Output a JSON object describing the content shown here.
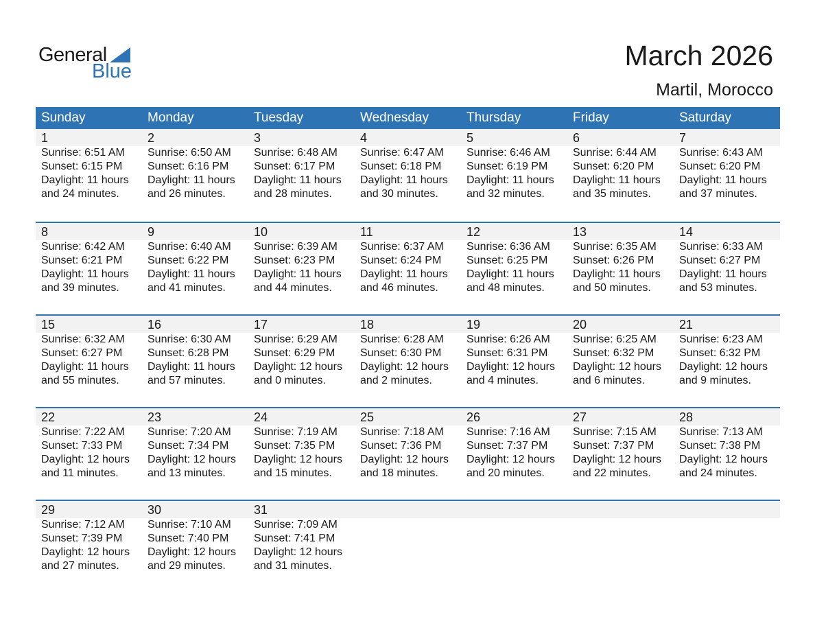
{
  "logo": {
    "text1": "General",
    "text2": "Blue"
  },
  "title": "March 2026",
  "location": "Martil, Morocco",
  "weekdays": [
    "Sunday",
    "Monday",
    "Tuesday",
    "Wednesday",
    "Thursday",
    "Friday",
    "Saturday"
  ],
  "weeks": [
    [
      {
        "d": "1",
        "sr": "Sunrise: 6:51 AM",
        "ss": "Sunset: 6:15 PM",
        "dl": "Daylight: 11 hours",
        "mn": "and 24 minutes."
      },
      {
        "d": "2",
        "sr": "Sunrise: 6:50 AM",
        "ss": "Sunset: 6:16 PM",
        "dl": "Daylight: 11 hours",
        "mn": "and 26 minutes."
      },
      {
        "d": "3",
        "sr": "Sunrise: 6:48 AM",
        "ss": "Sunset: 6:17 PM",
        "dl": "Daylight: 11 hours",
        "mn": "and 28 minutes."
      },
      {
        "d": "4",
        "sr": "Sunrise: 6:47 AM",
        "ss": "Sunset: 6:18 PM",
        "dl": "Daylight: 11 hours",
        "mn": "and 30 minutes."
      },
      {
        "d": "5",
        "sr": "Sunrise: 6:46 AM",
        "ss": "Sunset: 6:19 PM",
        "dl": "Daylight: 11 hours",
        "mn": "and 32 minutes."
      },
      {
        "d": "6",
        "sr": "Sunrise: 6:44 AM",
        "ss": "Sunset: 6:20 PM",
        "dl": "Daylight: 11 hours",
        "mn": "and 35 minutes."
      },
      {
        "d": "7",
        "sr": "Sunrise: 6:43 AM",
        "ss": "Sunset: 6:20 PM",
        "dl": "Daylight: 11 hours",
        "mn": "and 37 minutes."
      }
    ],
    [
      {
        "d": "8",
        "sr": "Sunrise: 6:42 AM",
        "ss": "Sunset: 6:21 PM",
        "dl": "Daylight: 11 hours",
        "mn": "and 39 minutes."
      },
      {
        "d": "9",
        "sr": "Sunrise: 6:40 AM",
        "ss": "Sunset: 6:22 PM",
        "dl": "Daylight: 11 hours",
        "mn": "and 41 minutes."
      },
      {
        "d": "10",
        "sr": "Sunrise: 6:39 AM",
        "ss": "Sunset: 6:23 PM",
        "dl": "Daylight: 11 hours",
        "mn": "and 44 minutes."
      },
      {
        "d": "11",
        "sr": "Sunrise: 6:37 AM",
        "ss": "Sunset: 6:24 PM",
        "dl": "Daylight: 11 hours",
        "mn": "and 46 minutes."
      },
      {
        "d": "12",
        "sr": "Sunrise: 6:36 AM",
        "ss": "Sunset: 6:25 PM",
        "dl": "Daylight: 11 hours",
        "mn": "and 48 minutes."
      },
      {
        "d": "13",
        "sr": "Sunrise: 6:35 AM",
        "ss": "Sunset: 6:26 PM",
        "dl": "Daylight: 11 hours",
        "mn": "and 50 minutes."
      },
      {
        "d": "14",
        "sr": "Sunrise: 6:33 AM",
        "ss": "Sunset: 6:27 PM",
        "dl": "Daylight: 11 hours",
        "mn": "and 53 minutes."
      }
    ],
    [
      {
        "d": "15",
        "sr": "Sunrise: 6:32 AM",
        "ss": "Sunset: 6:27 PM",
        "dl": "Daylight: 11 hours",
        "mn": "and 55 minutes."
      },
      {
        "d": "16",
        "sr": "Sunrise: 6:30 AM",
        "ss": "Sunset: 6:28 PM",
        "dl": "Daylight: 11 hours",
        "mn": "and 57 minutes."
      },
      {
        "d": "17",
        "sr": "Sunrise: 6:29 AM",
        "ss": "Sunset: 6:29 PM",
        "dl": "Daylight: 12 hours",
        "mn": "and 0 minutes."
      },
      {
        "d": "18",
        "sr": "Sunrise: 6:28 AM",
        "ss": "Sunset: 6:30 PM",
        "dl": "Daylight: 12 hours",
        "mn": "and 2 minutes."
      },
      {
        "d": "19",
        "sr": "Sunrise: 6:26 AM",
        "ss": "Sunset: 6:31 PM",
        "dl": "Daylight: 12 hours",
        "mn": "and 4 minutes."
      },
      {
        "d": "20",
        "sr": "Sunrise: 6:25 AM",
        "ss": "Sunset: 6:32 PM",
        "dl": "Daylight: 12 hours",
        "mn": "and 6 minutes."
      },
      {
        "d": "21",
        "sr": "Sunrise: 6:23 AM",
        "ss": "Sunset: 6:32 PM",
        "dl": "Daylight: 12 hours",
        "mn": "and 9 minutes."
      }
    ],
    [
      {
        "d": "22",
        "sr": "Sunrise: 7:22 AM",
        "ss": "Sunset: 7:33 PM",
        "dl": "Daylight: 12 hours",
        "mn": "and 11 minutes."
      },
      {
        "d": "23",
        "sr": "Sunrise: 7:20 AM",
        "ss": "Sunset: 7:34 PM",
        "dl": "Daylight: 12 hours",
        "mn": "and 13 minutes."
      },
      {
        "d": "24",
        "sr": "Sunrise: 7:19 AM",
        "ss": "Sunset: 7:35 PM",
        "dl": "Daylight: 12 hours",
        "mn": "and 15 minutes."
      },
      {
        "d": "25",
        "sr": "Sunrise: 7:18 AM",
        "ss": "Sunset: 7:36 PM",
        "dl": "Daylight: 12 hours",
        "mn": "and 18 minutes."
      },
      {
        "d": "26",
        "sr": "Sunrise: 7:16 AM",
        "ss": "Sunset: 7:37 PM",
        "dl": "Daylight: 12 hours",
        "mn": "and 20 minutes."
      },
      {
        "d": "27",
        "sr": "Sunrise: 7:15 AM",
        "ss": "Sunset: 7:37 PM",
        "dl": "Daylight: 12 hours",
        "mn": "and 22 minutes."
      },
      {
        "d": "28",
        "sr": "Sunrise: 7:13 AM",
        "ss": "Sunset: 7:38 PM",
        "dl": "Daylight: 12 hours",
        "mn": "and 24 minutes."
      }
    ],
    [
      {
        "d": "29",
        "sr": "Sunrise: 7:12 AM",
        "ss": "Sunset: 7:39 PM",
        "dl": "Daylight: 12 hours",
        "mn": "and 27 minutes."
      },
      {
        "d": "30",
        "sr": "Sunrise: 7:10 AM",
        "ss": "Sunset: 7:40 PM",
        "dl": "Daylight: 12 hours",
        "mn": "and 29 minutes."
      },
      {
        "d": "31",
        "sr": "Sunrise: 7:09 AM",
        "ss": "Sunset: 7:41 PM",
        "dl": "Daylight: 12 hours",
        "mn": "and 31 minutes."
      }
    ]
  ],
  "colors": {
    "accent": "#2E74B5",
    "band": "#f2f2f2"
  }
}
